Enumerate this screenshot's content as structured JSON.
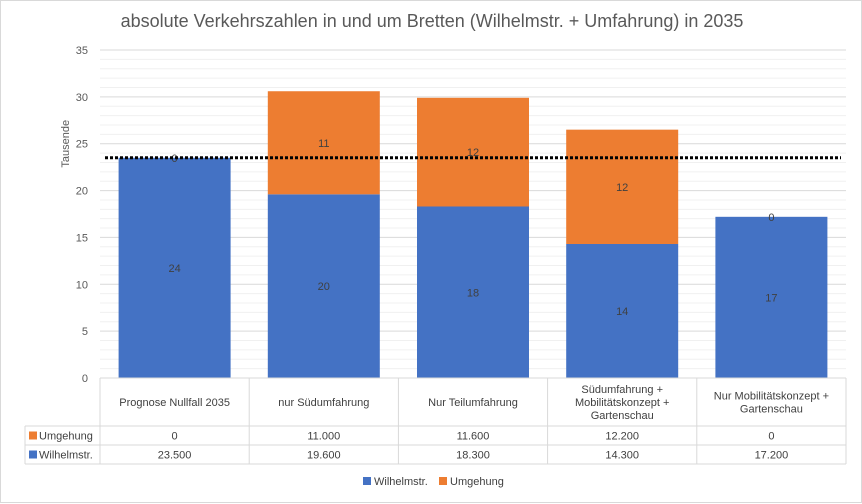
{
  "chart_data": {
    "type": "bar",
    "stacked": true,
    "title": "absolute Verkehrszahlen in und um Bretten (Wilhelmstr. + Umfahrung) in 2035",
    "ylabel": "Tausende",
    "ylim": [
      0,
      35
    ],
    "yticks": [
      "0",
      "5",
      "10",
      "15",
      "20",
      "25",
      "30",
      "35"
    ],
    "grid": true,
    "categories": [
      "Prognose Nullfall 2035",
      "nur Südumfahrung",
      "Nur Teilumfahrung",
      "Südumfahrung + Mobilitätskonzept + Gartenschau",
      "Nur Mobilitätskonzept + Gartenschau"
    ],
    "series": [
      {
        "name": "Wilhelmstr.",
        "color": "#4472c4",
        "values": [
          23.5,
          19.6,
          18.3,
          14.3,
          17.2
        ],
        "data_labels": [
          "24",
          "20",
          "18",
          "14",
          "17"
        ],
        "table_values": [
          "23.500",
          "19.600",
          "18.300",
          "14.300",
          "17.200"
        ]
      },
      {
        "name": "Umgehung",
        "color": "#ed7d31",
        "values": [
          0,
          11.0,
          11.6,
          12.2,
          0
        ],
        "data_labels": [
          "0",
          "11",
          "12",
          "12",
          "0"
        ],
        "table_values": [
          "0",
          "11.000",
          "11.600",
          "12.200",
          "0"
        ]
      }
    ],
    "reference_line": {
      "value": 23.5,
      "style": "dotted",
      "color": "#000000"
    },
    "legend_position": "bottom",
    "data_table": true
  }
}
